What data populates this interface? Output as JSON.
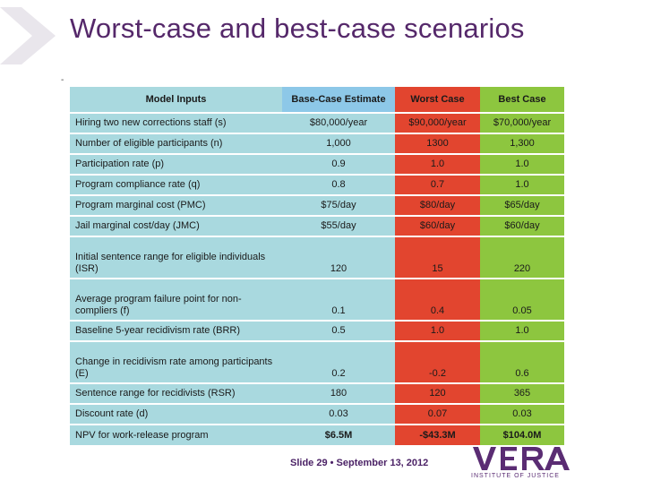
{
  "slide": {
    "title": "Worst-case and best-case scenarios",
    "tick_mark": "-"
  },
  "table": {
    "headers": [
      "Model Inputs",
      "Base-Case Estimate",
      "Worst Case",
      "Best Case"
    ],
    "rows": [
      [
        "Hiring two new corrections staff (s)",
        "$80,000/year",
        "$90,000/year",
        "$70,000/year"
      ],
      [
        "Number of eligible participants (n)",
        "1,000",
        "1300",
        "1,300"
      ],
      [
        "Participation rate (p)",
        "0.9",
        "1.0",
        "1.0"
      ],
      [
        "Program compliance rate (q)",
        "0.8",
        "0.7",
        "1.0"
      ],
      [
        "Program marginal cost (PMC)",
        "$75/day",
        "$80/day",
        "$65/day"
      ],
      [
        "Jail marginal cost/day (JMC)",
        "$55/day",
        "$60/day",
        "$60/day"
      ],
      [
        "Initial sentence range for eligible individuals (ISR)",
        "120",
        "15",
        "220"
      ],
      [
        "Average program failure point for non-compliers (f)",
        "0.1",
        "0.4",
        "0.05"
      ],
      [
        "Baseline 5-year recidivism rate (BRR)",
        "0.5",
        "1.0",
        "1.0"
      ],
      [
        "Change in recidivism rate among participants (E)",
        "0.2",
        "-0.2",
        "0.6"
      ],
      [
        "Sentence range for recidivists (RSR)",
        "180",
        "120",
        "365"
      ],
      [
        "Discount rate (d)",
        "0.03",
        "0.07",
        "0.03"
      ],
      [
        "NPV for work-release program",
        "$6.5M",
        "-$43.3M",
        "$104.0M"
      ]
    ]
  },
  "footer": {
    "slide_info": "Slide 29 •  September 13, 2012"
  },
  "logo": {
    "name": "VERA",
    "subtitle": "INSTITUTE OF JUSTICE"
  },
  "colors": {
    "title": "#55286a",
    "label_column": "#a9d9df",
    "base_header": "#8dc8e8",
    "worst_case": "#e2452f",
    "best_case": "#8dc63f",
    "brand_purple": "#5a2c73"
  }
}
